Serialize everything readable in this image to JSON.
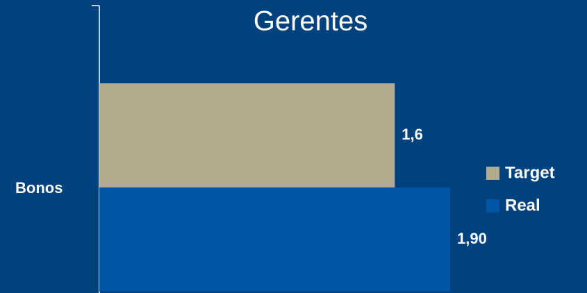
{
  "chart_data": {
    "type": "hbar",
    "title": "Gerentes",
    "categories": [
      "Bonos"
    ],
    "series": [
      {
        "name": "Target",
        "color": "#b3ab8e",
        "values": [
          1.6
        ],
        "value_labels": [
          "1,6"
        ]
      },
      {
        "name": "Real",
        "color": "#0054a6",
        "values": [
          1.9
        ],
        "value_labels": [
          "1,90"
        ]
      }
    ],
    "xlim": [
      0,
      2
    ]
  }
}
